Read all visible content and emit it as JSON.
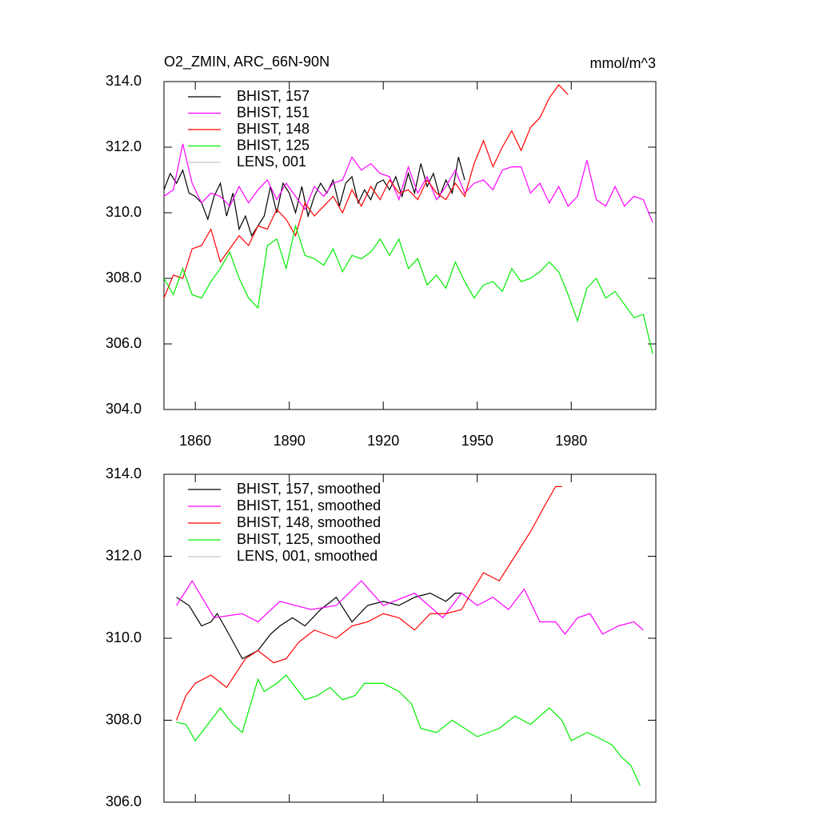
{
  "chart_data": [
    {
      "type": "line",
      "title": "O2_ZMIN, ARC_66N-90N",
      "units": "mmol/m^3",
      "xlim": [
        1850,
        2007
      ],
      "xticks": [
        1860,
        1890,
        1920,
        1950,
        1980
      ],
      "show_xtick_labels": true,
      "ylim": [
        304,
        314
      ],
      "yticks": [
        {
          "value": 304,
          "label": "304.0"
        },
        {
          "value": 306,
          "label": "306.0"
        },
        {
          "value": 308,
          "label": "308.0"
        },
        {
          "value": 310,
          "label": "310.0"
        },
        {
          "value": 312,
          "label": "312.0"
        },
        {
          "value": 314,
          "label": "314.0"
        }
      ],
      "legend": "top-left",
      "series": [
        {
          "name": "BHIST, 157",
          "color": "#000000",
          "x": [
            1850,
            1852,
            1854,
            1856,
            1858,
            1860,
            1862,
            1864,
            1866,
            1868,
            1870,
            1872,
            1874,
            1876,
            1878,
            1880,
            1882,
            1884,
            1886,
            1888,
            1890,
            1892,
            1894,
            1896,
            1898,
            1900,
            1902,
            1904,
            1906,
            1908,
            1910,
            1912,
            1914,
            1916,
            1918,
            1920,
            1922,
            1924,
            1926,
            1928,
            1930,
            1932,
            1934,
            1936,
            1938,
            1940,
            1942,
            1944,
            1946
          ],
          "values": [
            310.7,
            311.2,
            310.9,
            311.3,
            310.6,
            310.5,
            310.3,
            309.8,
            310.5,
            310.9,
            309.9,
            310.6,
            309.5,
            309.9,
            309.3,
            309.6,
            309.9,
            310.8,
            310.0,
            310.9,
            310.6,
            310.0,
            310.8,
            309.9,
            310.5,
            310.9,
            310.6,
            311.0,
            310.2,
            310.9,
            311.1,
            310.3,
            310.7,
            310.4,
            310.9,
            311.0,
            310.7,
            311.1,
            310.5,
            311.2,
            310.6,
            311.5,
            310.8,
            311.2,
            310.5,
            311.0,
            310.6,
            311.7,
            311.0
          ]
        },
        {
          "name": "BHIST, 151",
          "color": "#ff00ff",
          "x": [
            1850,
            1853,
            1856,
            1859,
            1862,
            1865,
            1868,
            1871,
            1874,
            1877,
            1880,
            1883,
            1886,
            1889,
            1892,
            1895,
            1898,
            1901,
            1904,
            1907,
            1910,
            1913,
            1916,
            1919,
            1922,
            1925,
            1928,
            1931,
            1934,
            1937,
            1940,
            1943,
            1946,
            1949,
            1952,
            1955,
            1958,
            1961,
            1964,
            1967,
            1970,
            1973,
            1976,
            1979,
            1982,
            1985,
            1988,
            1991,
            1994,
            1997,
            2000,
            2003,
            2006
          ],
          "values": [
            310.5,
            310.7,
            312.1,
            310.9,
            310.3,
            310.6,
            310.5,
            310.2,
            310.8,
            310.3,
            310.7,
            311.0,
            310.4,
            310.9,
            310.5,
            310.1,
            310.8,
            310.5,
            310.9,
            311.0,
            311.7,
            311.3,
            311.5,
            311.2,
            311.1,
            310.4,
            311.4,
            310.6,
            311.1,
            310.4,
            310.8,
            311.3,
            310.6,
            310.9,
            311.0,
            310.7,
            311.3,
            311.4,
            311.4,
            310.6,
            310.9,
            310.3,
            310.8,
            310.2,
            310.5,
            311.6,
            310.4,
            310.2,
            310.8,
            310.2,
            310.5,
            310.4,
            309.7
          ]
        },
        {
          "name": "BHIST, 148",
          "color": "#ff0000",
          "x": [
            1850,
            1853,
            1856,
            1859,
            1862,
            1865,
            1868,
            1871,
            1874,
            1877,
            1880,
            1883,
            1886,
            1889,
            1892,
            1895,
            1898,
            1901,
            1904,
            1907,
            1910,
            1913,
            1916,
            1919,
            1922,
            1925,
            1928,
            1931,
            1934,
            1937,
            1940,
            1943,
            1946,
            1949,
            1952,
            1955,
            1958,
            1961,
            1964,
            1967,
            1970,
            1973,
            1976,
            1979
          ],
          "values": [
            307.4,
            308.1,
            308.0,
            308.9,
            309.0,
            309.5,
            308.5,
            308.9,
            309.3,
            309.0,
            309.6,
            309.5,
            310.1,
            309.8,
            309.3,
            310.3,
            309.9,
            310.2,
            310.5,
            310.0,
            310.7,
            310.2,
            310.8,
            310.4,
            311.0,
            310.6,
            310.7,
            310.4,
            311.0,
            310.6,
            310.4,
            310.9,
            310.5,
            311.5,
            312.2,
            311.4,
            312.0,
            312.5,
            311.9,
            312.6,
            312.9,
            313.5,
            313.9,
            313.6
          ]
        },
        {
          "name": "BHIST, 125",
          "color": "#00ee00",
          "x": [
            1850,
            1853,
            1856,
            1859,
            1862,
            1865,
            1868,
            1871,
            1874,
            1877,
            1880,
            1883,
            1886,
            1889,
            1892,
            1895,
            1898,
            1901,
            1904,
            1907,
            1910,
            1913,
            1916,
            1919,
            1922,
            1925,
            1928,
            1931,
            1934,
            1937,
            1940,
            1943,
            1946,
            1949,
            1952,
            1955,
            1958,
            1961,
            1964,
            1967,
            1970,
            1973,
            1976,
            1979,
            1982,
            1985,
            1988,
            1991,
            1994,
            1997,
            2000,
            2003,
            2006
          ],
          "values": [
            308.0,
            307.5,
            308.3,
            307.5,
            307.4,
            307.9,
            308.3,
            308.8,
            308.0,
            307.4,
            307.1,
            309.0,
            309.2,
            308.3,
            309.6,
            308.7,
            308.6,
            308.4,
            308.9,
            308.2,
            308.7,
            308.6,
            308.8,
            309.2,
            308.7,
            309.2,
            308.3,
            308.6,
            307.8,
            308.1,
            307.7,
            308.5,
            307.9,
            307.4,
            307.8,
            307.9,
            307.6,
            308.3,
            307.9,
            308.0,
            308.2,
            308.5,
            308.2,
            307.5,
            306.7,
            307.7,
            308.0,
            307.4,
            307.6,
            307.2,
            306.8,
            306.9,
            305.7
          ]
        },
        {
          "name": "LENS, 001",
          "color": "#c8c8c8",
          "x": [],
          "values": []
        }
      ]
    },
    {
      "type": "line",
      "xlim": [
        1850,
        2007
      ],
      "xticks": [
        1860,
        1890,
        1920,
        1950,
        1980
      ],
      "show_xtick_labels": false,
      "ylim": [
        306,
        314
      ],
      "yticks": [
        {
          "value": 306,
          "label": "306.0"
        },
        {
          "value": 308,
          "label": "308.0"
        },
        {
          "value": 310,
          "label": "310.0"
        },
        {
          "value": 312,
          "label": "312.0"
        },
        {
          "value": 314,
          "label": "314.0"
        }
      ],
      "legend": "top-left",
      "series": [
        {
          "name": "BHIST, 157, smoothed",
          "color": "#000000",
          "x": [
            1854,
            1858,
            1862,
            1865,
            1867,
            1870,
            1875,
            1880,
            1884,
            1887,
            1891,
            1895,
            1900,
            1905,
            1910,
            1915,
            1920,
            1925,
            1930,
            1935,
            1940,
            1943,
            1945
          ],
          "values": [
            311.0,
            310.8,
            310.3,
            310.4,
            310.6,
            310.2,
            309.5,
            309.7,
            310.1,
            310.3,
            310.5,
            310.3,
            310.7,
            311.0,
            310.4,
            310.8,
            310.9,
            310.8,
            311.0,
            311.1,
            310.9,
            311.1,
            311.1
          ]
        },
        {
          "name": "BHIST, 151, smoothed",
          "color": "#ff00ff",
          "x": [
            1854,
            1859,
            1866,
            1875,
            1880,
            1887,
            1897,
            1905,
            1913,
            1920,
            1930,
            1939,
            1945,
            1950,
            1955,
            1960,
            1965,
            1970,
            1975,
            1978,
            1982,
            1986,
            1990,
            1995,
            2000,
            2003
          ],
          "values": [
            310.8,
            311.4,
            310.5,
            310.6,
            310.4,
            310.9,
            310.7,
            310.8,
            311.4,
            310.8,
            311.1,
            310.5,
            311.1,
            310.8,
            311.0,
            310.7,
            311.2,
            310.4,
            310.4,
            310.1,
            310.5,
            310.6,
            310.1,
            310.3,
            310.4,
            310.2
          ]
        },
        {
          "name": "BHIST, 148, smoothed",
          "color": "#ff0000",
          "x": [
            1854,
            1857,
            1860,
            1865,
            1870,
            1876,
            1880,
            1885,
            1889,
            1893,
            1898,
            1905,
            1910,
            1915,
            1920,
            1925,
            1930,
            1935,
            1940,
            1945,
            1948,
            1952,
            1957,
            1962,
            1967,
            1972,
            1975,
            1977
          ],
          "values": [
            308.0,
            308.6,
            308.9,
            309.1,
            308.8,
            309.5,
            309.7,
            309.4,
            309.5,
            309.9,
            310.2,
            310.0,
            310.3,
            310.4,
            310.6,
            310.5,
            310.2,
            310.6,
            310.6,
            310.7,
            311.1,
            311.6,
            311.4,
            312.0,
            312.6,
            313.3,
            313.7,
            313.7
          ]
        },
        {
          "name": "BHIST, 125, smoothed",
          "color": "#00ee00",
          "x": [
            1854,
            1857,
            1860,
            1863,
            1868,
            1872,
            1875,
            1880,
            1882,
            1886,
            1889,
            1895,
            1899,
            1903,
            1907,
            1911,
            1914,
            1920,
            1925,
            1929,
            1932,
            1937,
            1942,
            1946,
            1950,
            1957,
            1962,
            1967,
            1973,
            1977,
            1980,
            1985,
            1988,
            1993,
            1996,
            1999,
            2002
          ],
          "values": [
            307.95,
            307.9,
            307.5,
            307.8,
            308.3,
            307.9,
            307.7,
            309.0,
            308.7,
            308.9,
            309.1,
            308.5,
            308.6,
            308.8,
            308.5,
            308.6,
            308.9,
            308.9,
            308.7,
            308.4,
            307.8,
            307.7,
            308.0,
            307.8,
            307.6,
            307.8,
            308.1,
            307.9,
            308.3,
            308.0,
            307.5,
            307.7,
            307.6,
            307.4,
            307.1,
            306.9,
            306.4
          ]
        },
        {
          "name": "LENS, 001, smoothed",
          "color": "#c8c8c8",
          "x": [],
          "values": []
        }
      ]
    }
  ]
}
